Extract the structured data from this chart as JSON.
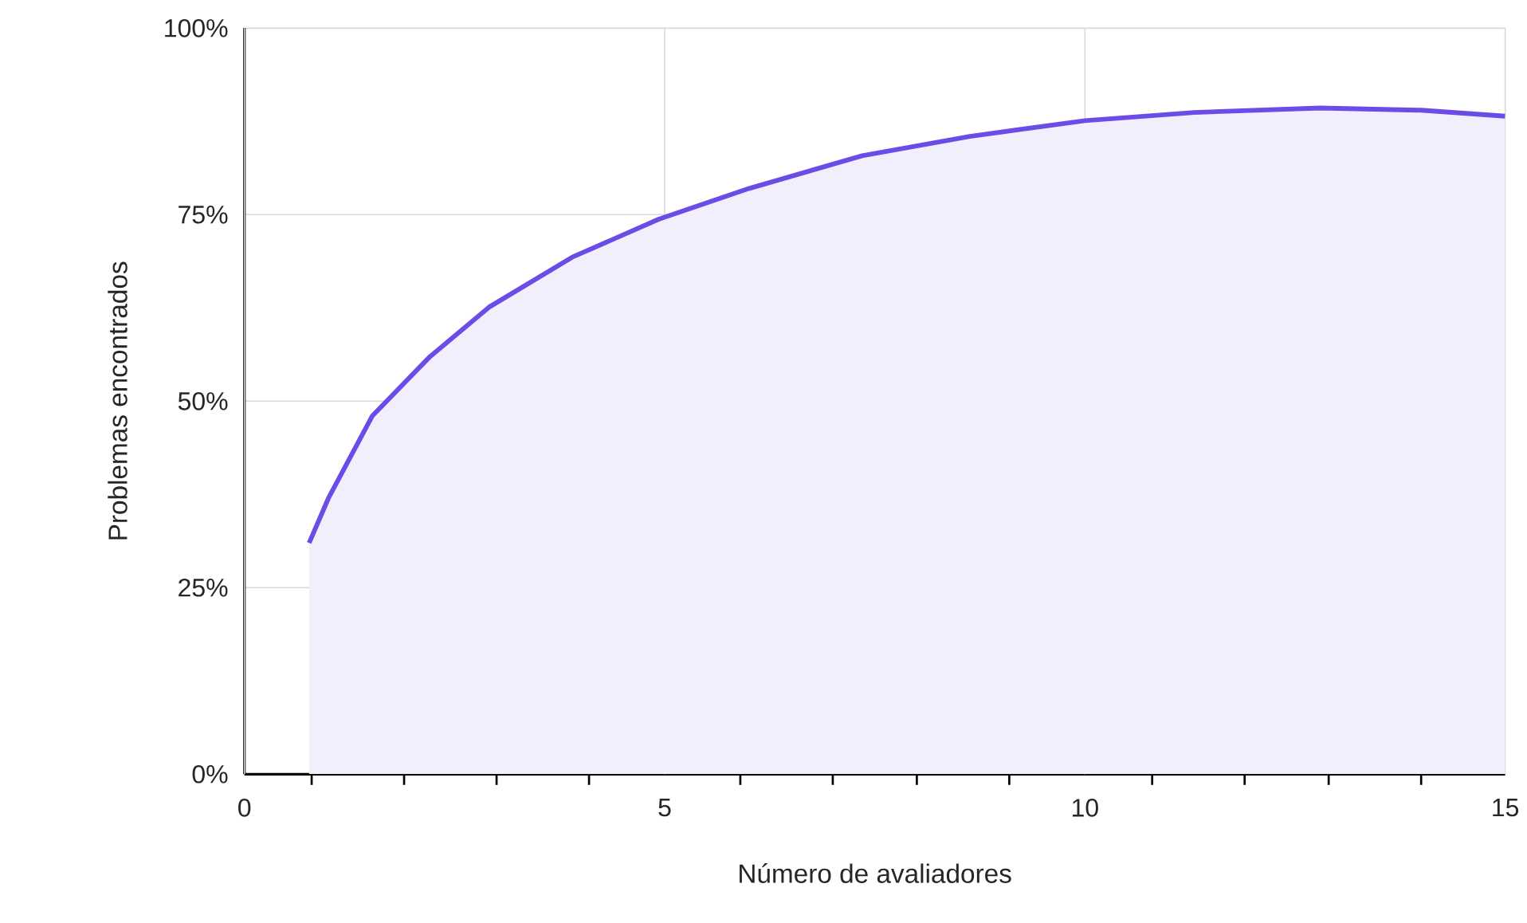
{
  "chart_data": {
    "type": "area",
    "xlabel": "Número de avaliadores",
    "ylabel": "Problemas encontrados",
    "series": [
      {
        "color": "#6b4ce6",
        "x": [
          0.77,
          1.0,
          1.52,
          2.21,
          2.91,
          3.9,
          4.93,
          6.0,
          7.35,
          8.63,
          10.0,
          11.3,
          12.8,
          14.0,
          15.0
        ],
        "values": [
          31,
          37,
          48,
          56,
          62.6,
          69.3,
          74.4,
          78.5,
          82.9,
          85.5,
          87.6,
          88.7,
          89.3,
          89.0,
          88.2
        ]
      }
    ],
    "xlim": [
      0,
      15
    ],
    "ylim": [
      0,
      100
    ],
    "xticks": [
      0,
      5,
      10,
      15,
      {
        "value": 0.8,
        "label": null
      },
      {
        "value": 1.9,
        "label": null
      },
      {
        "value": 3,
        "label": null
      },
      {
        "value": 4.1,
        "label": null
      },
      {
        "value": 5.9,
        "label": null
      },
      {
        "value": 7,
        "label": null
      },
      {
        "value": 8,
        "label": null
      },
      {
        "value": 9.1,
        "label": null
      },
      {
        "value": 10.8,
        "label": null
      },
      {
        "value": 11.9,
        "label": null
      },
      {
        "value": 12.9,
        "label": null
      },
      {
        "value": 14,
        "label": null
      }
    ],
    "yticks": [
      {
        "value": 0,
        "label": "0%"
      },
      {
        "value": 25,
        "label": "25%"
      },
      {
        "value": 50,
        "label": "50%"
      },
      {
        "value": 75,
        "label": "75%"
      },
      {
        "value": 100,
        "label": "100%"
      }
    ],
    "grid": true,
    "marker": "none",
    "line_style": "solid"
  }
}
